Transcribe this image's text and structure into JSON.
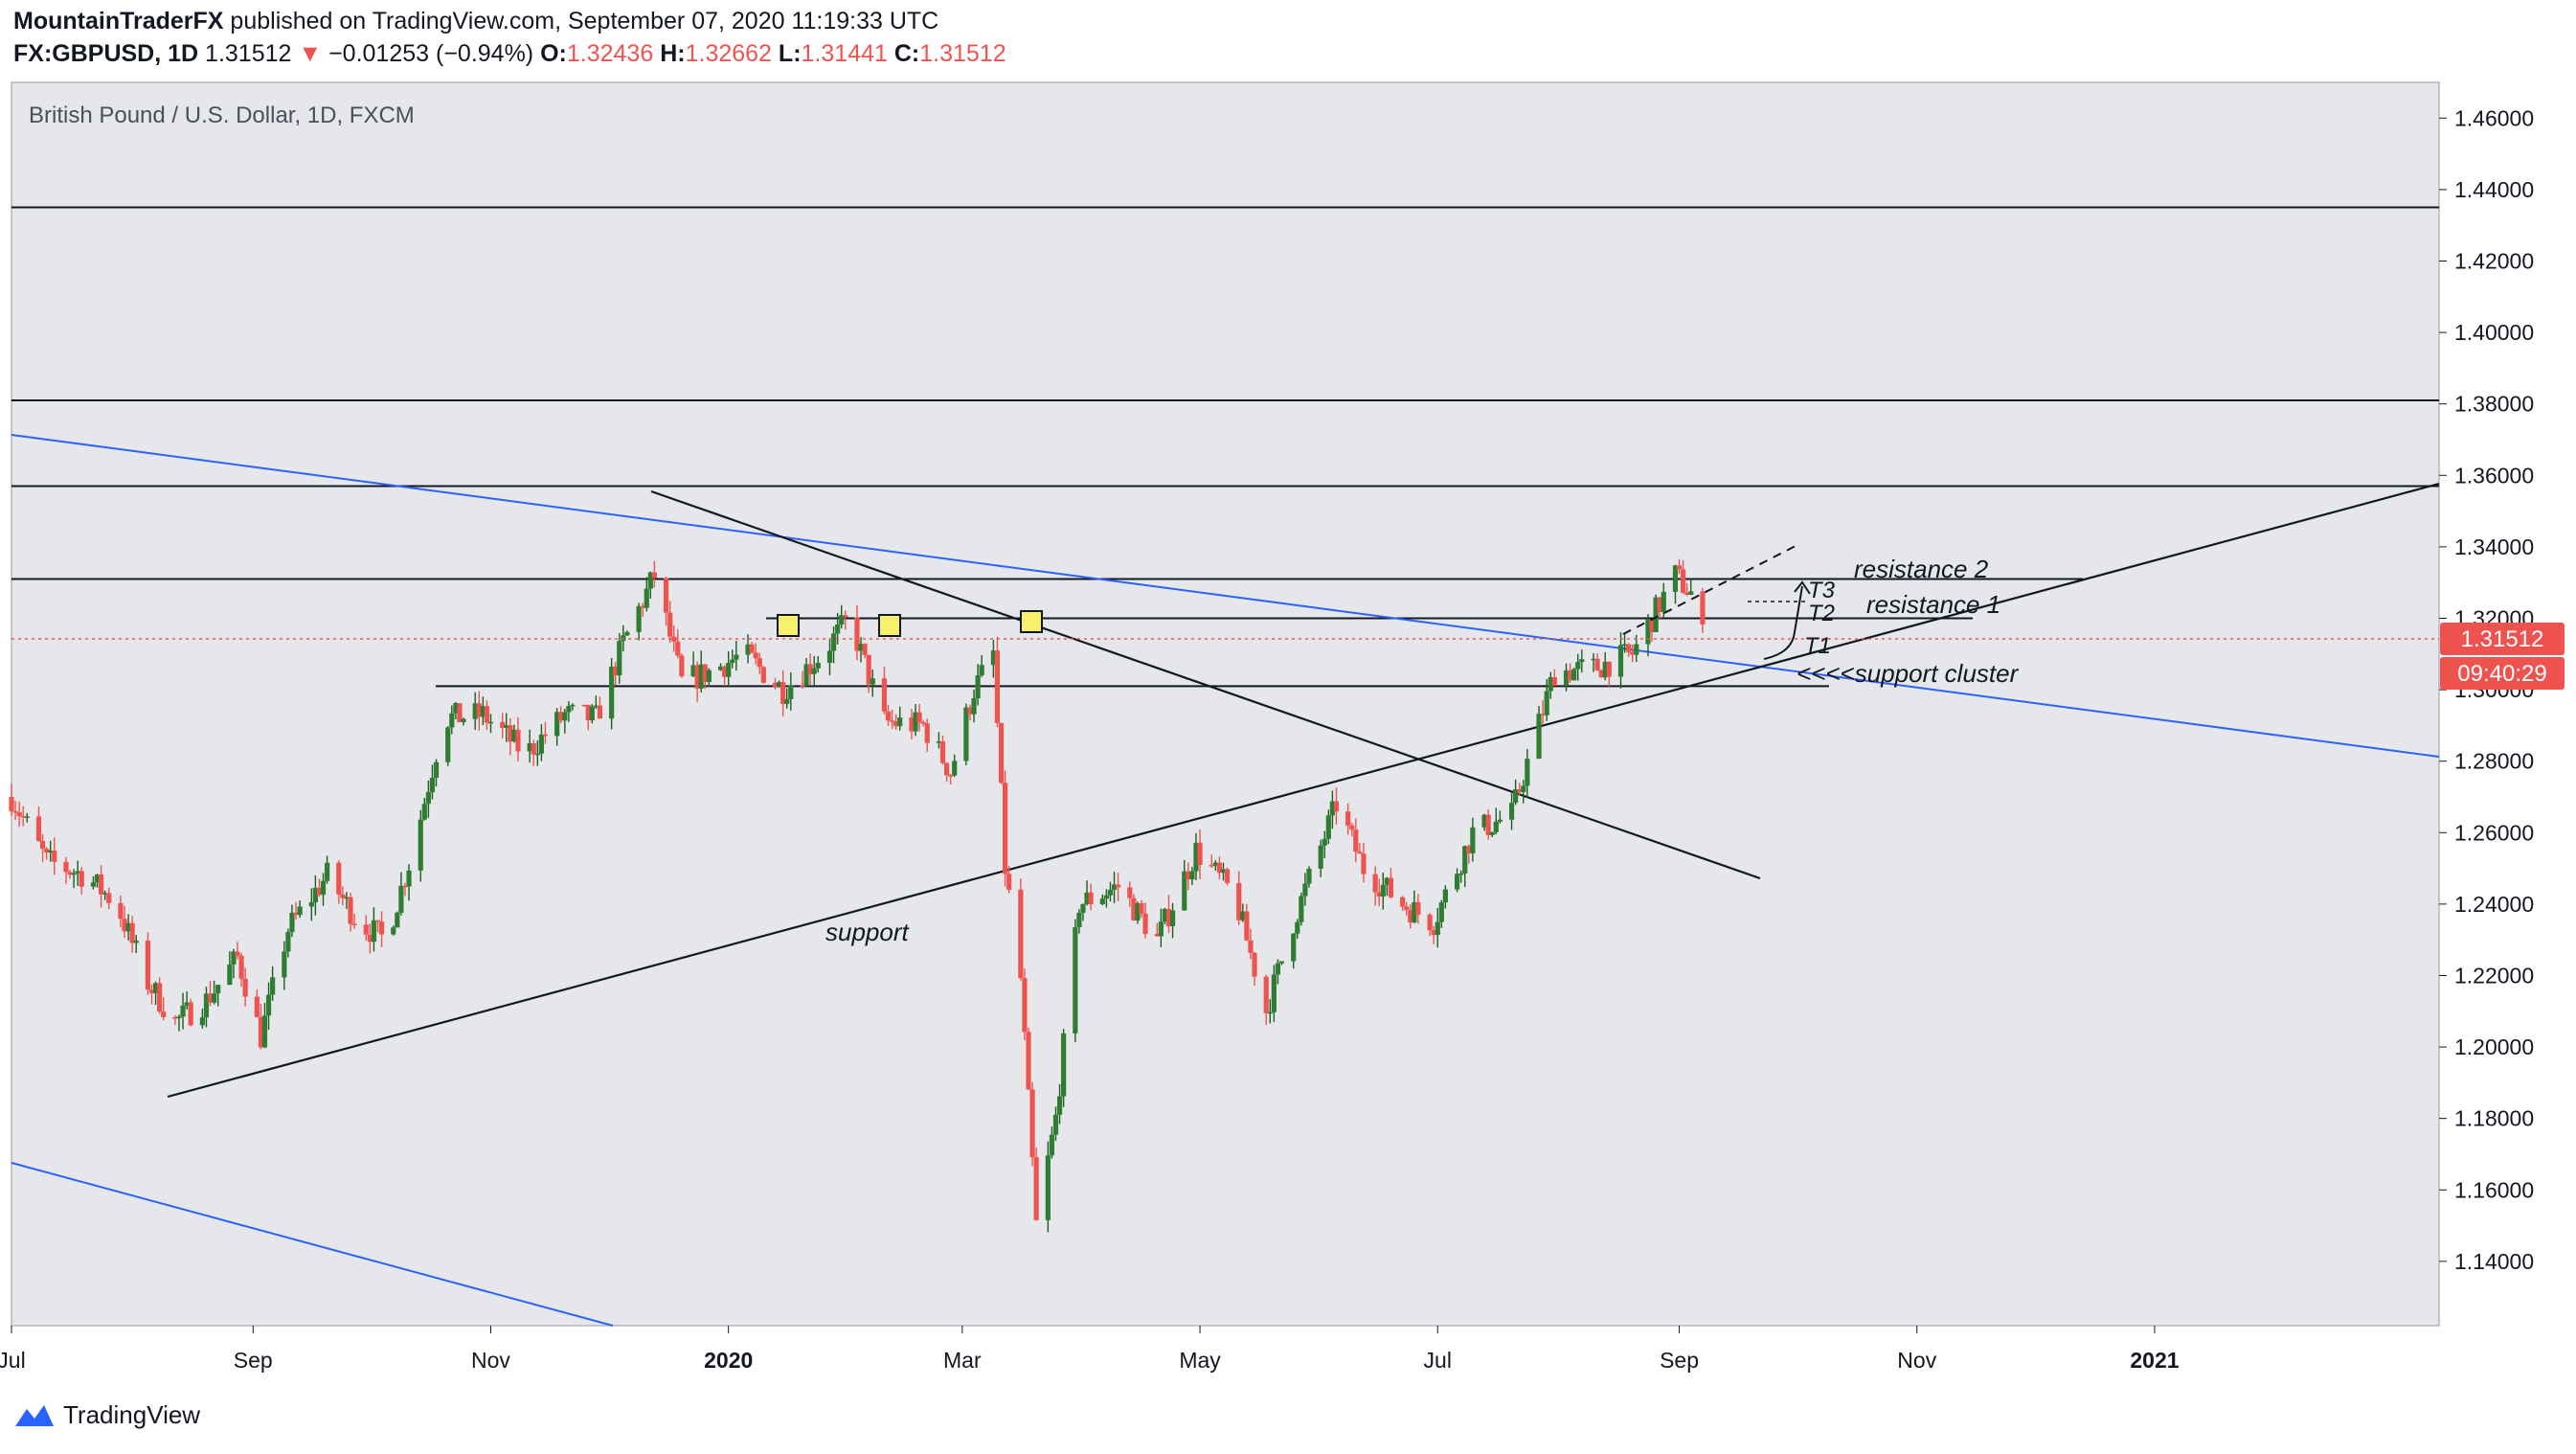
{
  "header": {
    "author": "MountainTraderFX",
    "published_text": "published on TradingView.com, September 07, 2020 11:19:33 UTC",
    "symbol": "FX:GBPUSD, 1D",
    "last": "1.31512",
    "change": "−0.01253 (−0.94%)",
    "open_label": "O:",
    "open": "1.32436",
    "high_label": "H:",
    "high": "1.32662",
    "low_label": "L:",
    "low": "1.31441",
    "close_label": "C:",
    "close": "1.31512"
  },
  "chart_data": {
    "type": "candlestick",
    "title": "British Pound / U.S. Dollar, 1D, FXCM",
    "y_axis": {
      "range": [
        1.122,
        1.47
      ],
      "ticks": [
        "1.46000",
        "1.44000",
        "1.42000",
        "1.40000",
        "1.38000",
        "1.36000",
        "1.34000",
        "1.32000",
        "1.30000",
        "1.28000",
        "1.26000",
        "1.24000",
        "1.22000",
        "1.20000",
        "1.18000",
        "1.16000",
        "1.14000"
      ]
    },
    "x_axis": {
      "range": [
        "2019-07-01",
        "2021-03-15"
      ],
      "ticks": [
        {
          "date": "2019-07-01",
          "label": "Jul",
          "bold": false
        },
        {
          "date": "2019-09-01",
          "label": "Sep",
          "bold": false
        },
        {
          "date": "2019-11-01",
          "label": "Nov",
          "bold": false
        },
        {
          "date": "2020-01-01",
          "label": "2020",
          "bold": true
        },
        {
          "date": "2020-03-01",
          "label": "Mar",
          "bold": false
        },
        {
          "date": "2020-05-01",
          "label": "May",
          "bold": false
        },
        {
          "date": "2020-07-01",
          "label": "Jul",
          "bold": false
        },
        {
          "date": "2020-09-01",
          "label": "Sep",
          "bold": false
        },
        {
          "date": "2020-11-01",
          "label": "Nov",
          "bold": false
        },
        {
          "date": "2021-01-01",
          "label": "2021",
          "bold": true
        }
      ]
    },
    "price_path": [
      [
        "2019-07-01",
        1.27
      ],
      [
        "2019-07-10",
        1.252
      ],
      [
        "2019-07-20",
        1.248
      ],
      [
        "2019-07-28",
        1.24
      ],
      [
        "2019-08-05",
        1.218
      ],
      [
        "2019-08-12",
        1.207
      ],
      [
        "2019-08-20",
        1.213
      ],
      [
        "2019-08-28",
        1.225
      ],
      [
        "2019-09-03",
        1.203
      ],
      [
        "2019-09-10",
        1.233
      ],
      [
        "2019-09-20",
        1.248
      ],
      [
        "2019-09-28",
        1.235
      ],
      [
        "2019-10-05",
        1.23
      ],
      [
        "2019-10-12",
        1.255
      ],
      [
        "2019-10-20",
        1.292
      ],
      [
        "2019-10-30",
        1.293
      ],
      [
        "2019-11-10",
        1.282
      ],
      [
        "2019-11-20",
        1.293
      ],
      [
        "2019-11-28",
        1.292
      ],
      [
        "2019-12-05",
        1.313
      ],
      [
        "2019-12-13",
        1.332
      ],
      [
        "2019-12-20",
        1.302
      ],
      [
        "2019-12-27",
        1.305
      ],
      [
        "2020-01-05",
        1.31
      ],
      [
        "2020-01-15",
        1.3
      ],
      [
        "2020-01-25",
        1.31
      ],
      [
        "2020-02-01",
        1.32
      ],
      [
        "2020-02-10",
        1.291
      ],
      [
        "2020-02-20",
        1.29
      ],
      [
        "2020-02-27",
        1.277
      ],
      [
        "2020-03-04",
        1.3
      ],
      [
        "2020-03-09",
        1.31
      ],
      [
        "2020-03-12",
        1.25
      ],
      [
        "2020-03-16",
        1.219
      ],
      [
        "2020-03-20",
        1.15
      ],
      [
        "2020-03-25",
        1.18
      ],
      [
        "2020-03-31",
        1.24
      ],
      [
        "2020-04-10",
        1.245
      ],
      [
        "2020-04-20",
        1.23
      ],
      [
        "2020-04-30",
        1.255
      ],
      [
        "2020-05-10",
        1.242
      ],
      [
        "2020-05-18",
        1.21
      ],
      [
        "2020-05-25",
        1.235
      ],
      [
        "2020-06-05",
        1.268
      ],
      [
        "2020-06-12",
        1.25
      ],
      [
        "2020-06-22",
        1.24
      ],
      [
        "2020-06-30",
        1.235
      ],
      [
        "2020-07-10",
        1.26
      ],
      [
        "2020-07-20",
        1.265
      ],
      [
        "2020-07-31",
        1.305
      ],
      [
        "2020-08-10",
        1.306
      ],
      [
        "2020-08-20",
        1.31
      ],
      [
        "2020-08-31",
        1.332
      ],
      [
        "2020-09-04",
        1.327
      ],
      [
        "2020-09-07",
        1.315
      ]
    ],
    "horizontal_levels": [
      1.435,
      1.381,
      1.357,
      1.331,
      1.32,
      1.301
    ],
    "current_price": {
      "value": 1.31512,
      "label": "1.31512",
      "countdown": "09:40:29"
    },
    "annotations": [
      "support",
      "resistance 2",
      "resistance 1",
      "T3",
      "T2",
      "T1",
      "<<<<support cluster"
    ]
  },
  "branding": {
    "name": "TradingView"
  },
  "colors": {
    "up": "#26a69a",
    "up_body": "#1b5e20",
    "down": "#ef5350",
    "trend_blue": "#2962ff",
    "background": "#e6e7eb",
    "price_tag": "#ef5350"
  }
}
